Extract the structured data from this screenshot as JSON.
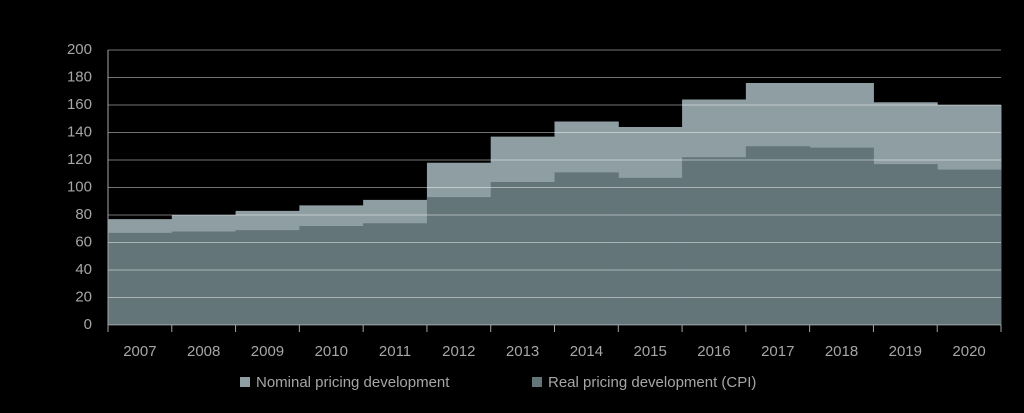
{
  "chart_data": {
    "type": "step-area",
    "categories": [
      "2007",
      "2008",
      "2009",
      "2010",
      "2011",
      "2012",
      "2013",
      "2014",
      "2015",
      "2016",
      "2017",
      "2018",
      "2019",
      "2020"
    ],
    "series": [
      {
        "name": "Nominal pricing development",
        "color": "#8f9ea3",
        "values": [
          77,
          80,
          83,
          87,
          91,
          118,
          137,
          148,
          144,
          164,
          176,
          176,
          162,
          160
        ]
      },
      {
        "name": "Real pricing development (CPI)",
        "color": "#64757a",
        "values": [
          67,
          68,
          69,
          72,
          74,
          93,
          104,
          111,
          107,
          122,
          130,
          129,
          117,
          113
        ]
      }
    ],
    "ylim": [
      0,
      200
    ],
    "yticks": [
      0,
      20,
      40,
      60,
      80,
      100,
      120,
      140,
      160,
      180,
      200
    ],
    "grid": true
  }
}
